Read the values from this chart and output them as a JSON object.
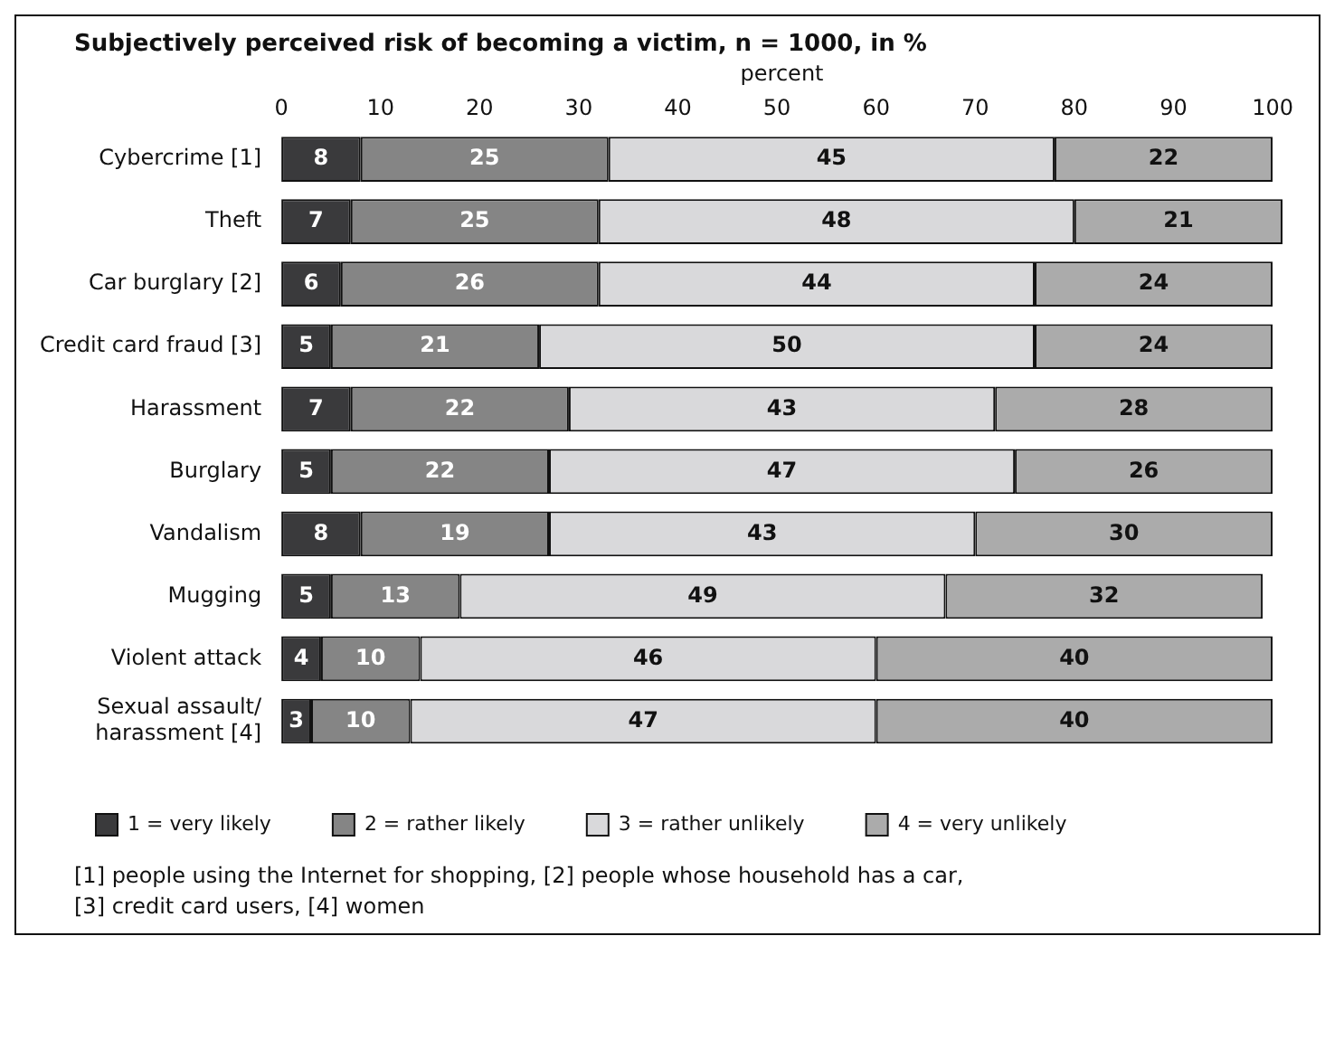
{
  "chart_data": {
    "type": "bar",
    "orientation": "horizontal",
    "stacked": true,
    "title": "Subjectively perceived risk of becoming a victim, n = 1000, in %",
    "xlabel": "percent",
    "categories": [
      "Cybercrime [1]",
      "Theft",
      "Car burglary [2]",
      "Credit card fraud [3]",
      "Harassment",
      "Burglary",
      "Vandalism",
      "Mugging",
      "Violent attack",
      "Sexual assault/ harassment [4]"
    ],
    "series": [
      {
        "name": "1 = very likely",
        "color": "#3a3a3c",
        "values": [
          8,
          7,
          6,
          5,
          7,
          5,
          8,
          5,
          4,
          3
        ]
      },
      {
        "name": "2 = rather likely",
        "color": "#858585",
        "values": [
          25,
          25,
          26,
          21,
          22,
          22,
          19,
          13,
          10,
          10
        ]
      },
      {
        "name": "3 = rather unlikely",
        "color": "#d9d9db",
        "values": [
          45,
          48,
          44,
          50,
          43,
          47,
          43,
          49,
          46,
          47
        ]
      },
      {
        "name": "4 = very unlikely",
        "color": "#ababab",
        "values": [
          22,
          21,
          24,
          24,
          28,
          26,
          30,
          32,
          40,
          40
        ]
      }
    ],
    "xlim": [
      0,
      101
    ],
    "xticks": [
      0,
      10,
      20,
      30,
      40,
      50,
      60,
      70,
      80,
      90,
      100
    ],
    "grid": false,
    "legend": "bottom",
    "data_labels": true,
    "annotations": [
      "[1] people using the Internet for shopping, [2] people whose household has a car,",
      "[3] credit card users, [4] women"
    ]
  }
}
